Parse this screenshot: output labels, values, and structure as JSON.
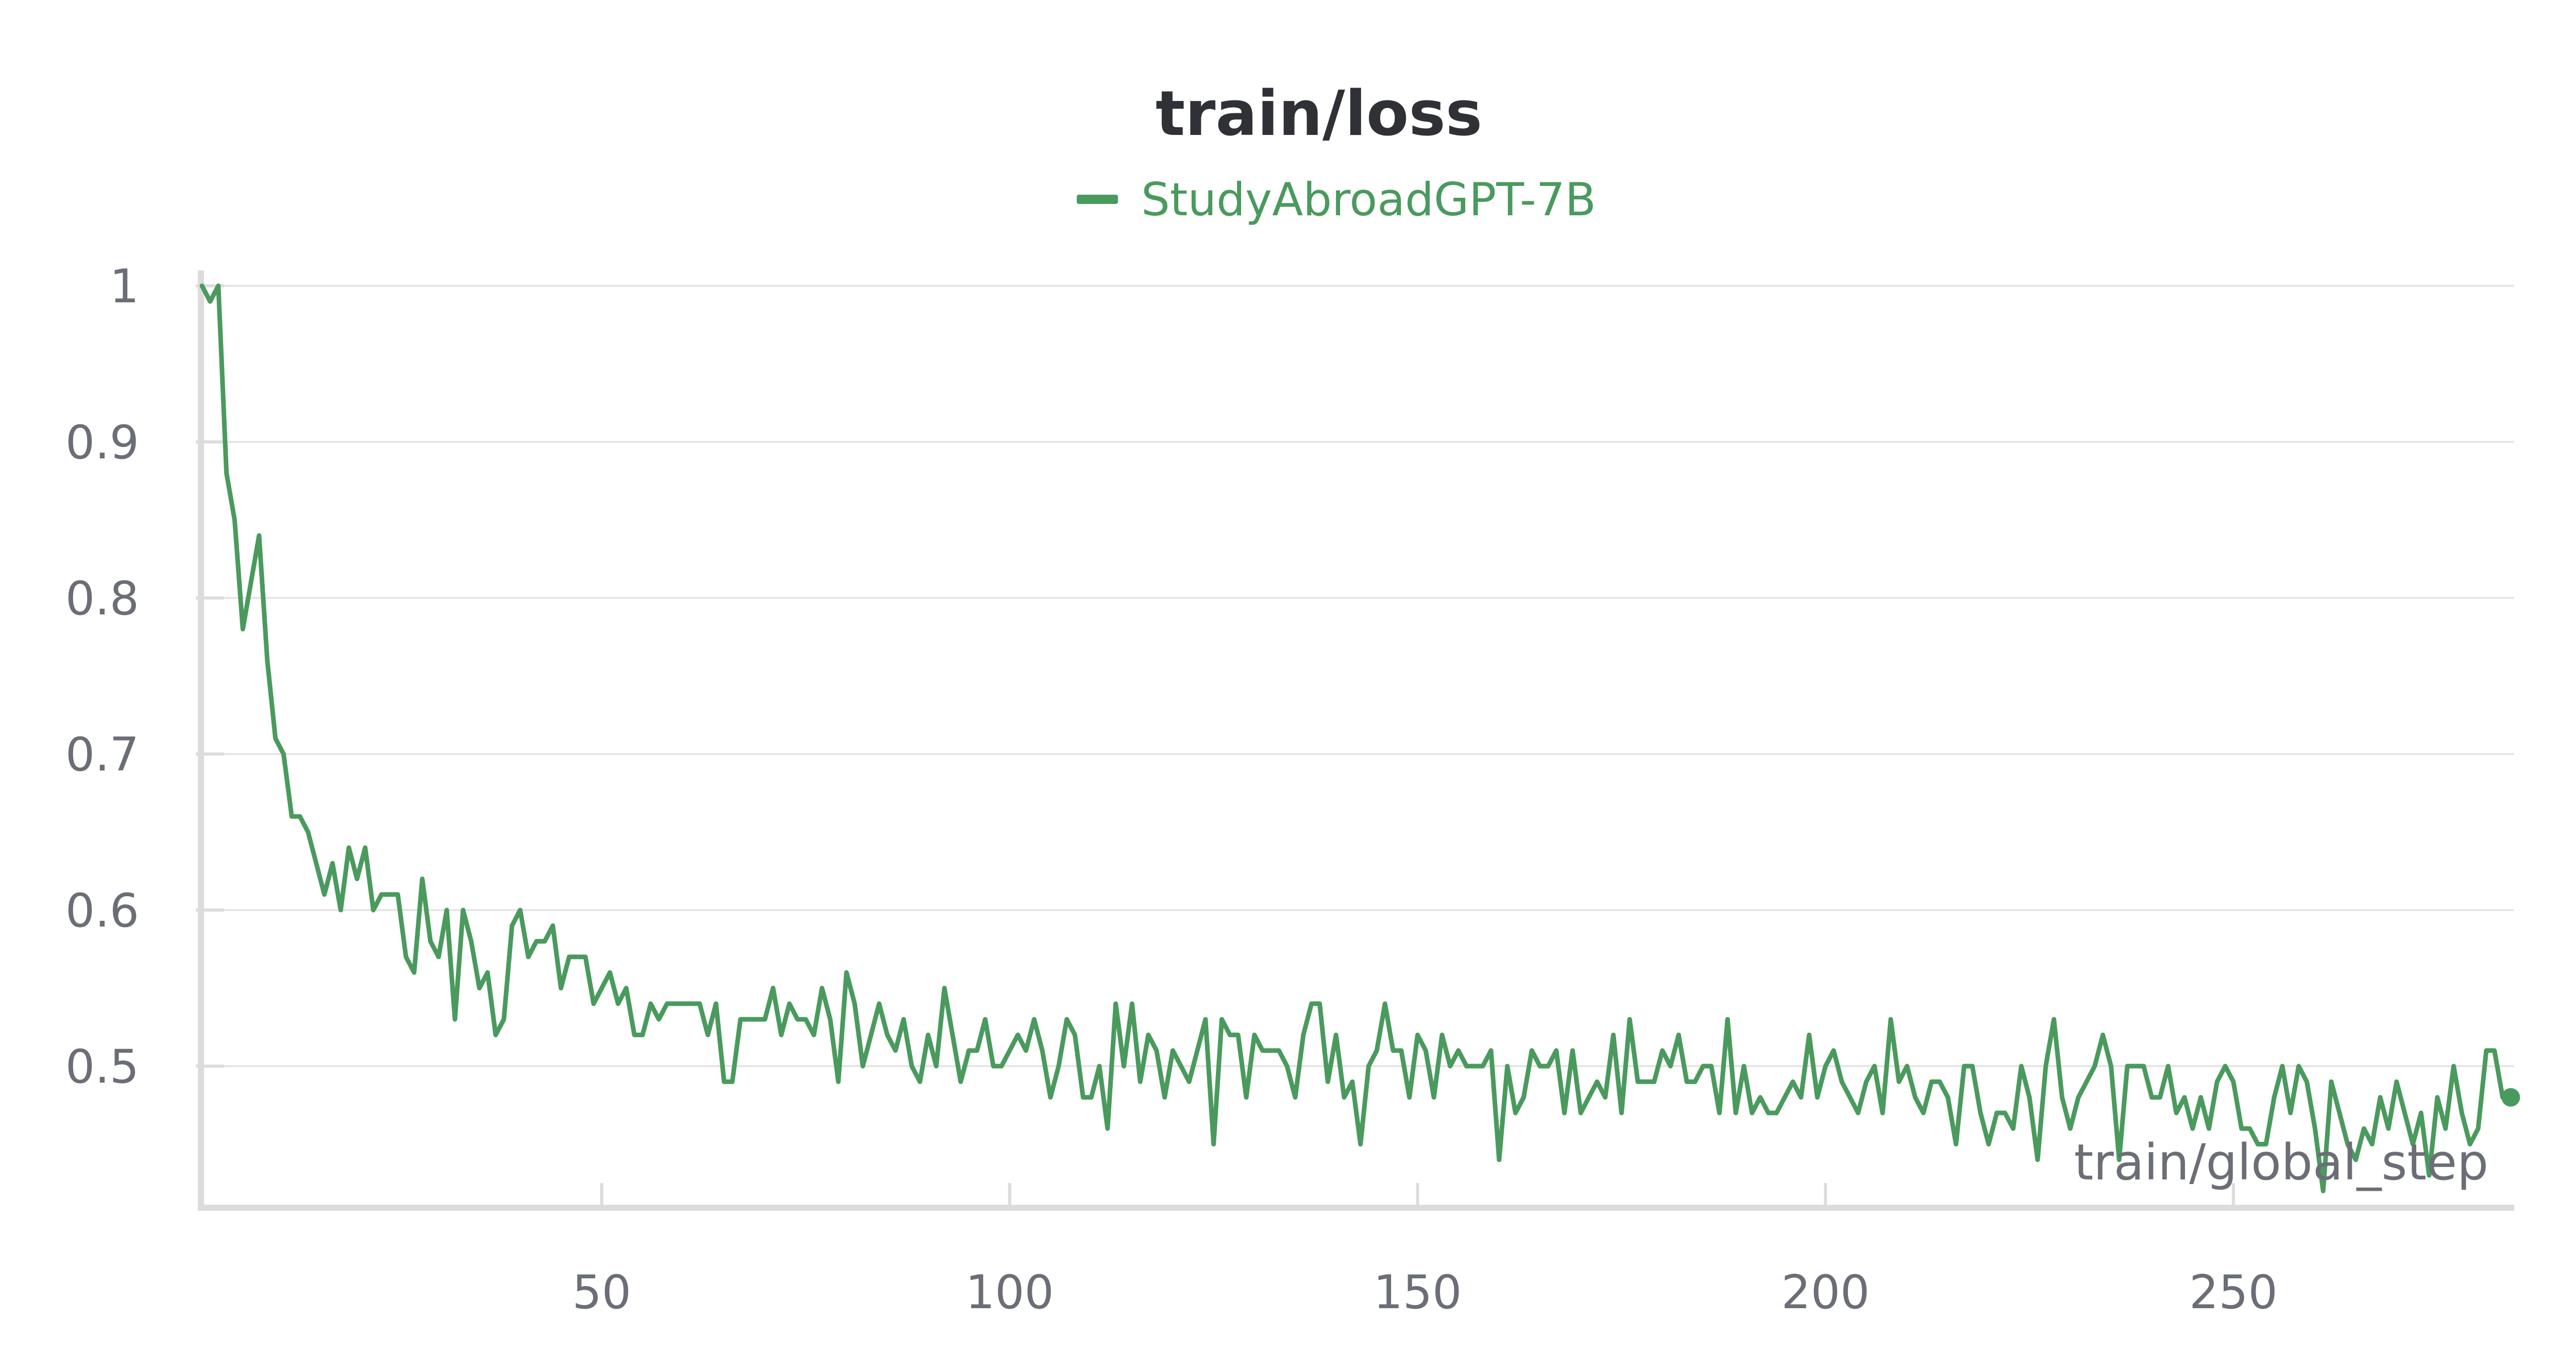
{
  "chart_data": {
    "type": "line",
    "title": "train/loss",
    "xlabel": "train/global_step",
    "ylabel": "",
    "x_ticks": [
      50,
      100,
      150,
      200,
      250
    ],
    "y_ticks": [
      0.5,
      0.6,
      0.7,
      0.8,
      0.9,
      1
    ],
    "xlim": [
      1,
      284
    ],
    "ylim": [
      0.41,
      1.0
    ],
    "grid": true,
    "legend_position": "top-center",
    "series": [
      {
        "name": "StudyAbroadGPT-7B",
        "color": "#4a9a5e",
        "x_start": 1,
        "x_step": 1,
        "values": [
          1.0,
          0.99,
          1.0,
          0.88,
          0.85,
          0.78,
          0.81,
          0.84,
          0.76,
          0.71,
          0.7,
          0.66,
          0.66,
          0.65,
          0.63,
          0.61,
          0.63,
          0.6,
          0.64,
          0.62,
          0.64,
          0.6,
          0.61,
          0.61,
          0.61,
          0.57,
          0.56,
          0.62,
          0.58,
          0.57,
          0.6,
          0.53,
          0.6,
          0.58,
          0.55,
          0.56,
          0.52,
          0.53,
          0.59,
          0.6,
          0.57,
          0.58,
          0.58,
          0.59,
          0.55,
          0.57,
          0.57,
          0.57,
          0.54,
          0.55,
          0.56,
          0.54,
          0.55,
          0.52,
          0.52,
          0.54,
          0.53,
          0.54,
          0.54,
          0.54,
          0.54,
          0.54,
          0.52,
          0.54,
          0.49,
          0.49,
          0.53,
          0.53,
          0.53,
          0.53,
          0.55,
          0.52,
          0.54,
          0.53,
          0.53,
          0.52,
          0.55,
          0.53,
          0.49,
          0.56,
          0.54,
          0.5,
          0.52,
          0.54,
          0.52,
          0.51,
          0.53,
          0.5,
          0.49,
          0.52,
          0.5,
          0.55,
          0.52,
          0.49,
          0.51,
          0.51,
          0.53,
          0.5,
          0.5,
          0.51,
          0.52,
          0.51,
          0.53,
          0.51,
          0.48,
          0.5,
          0.53,
          0.52,
          0.48,
          0.48,
          0.5,
          0.46,
          0.54,
          0.5,
          0.54,
          0.49,
          0.52,
          0.51,
          0.48,
          0.51,
          0.5,
          0.49,
          0.51,
          0.53,
          0.45,
          0.53,
          0.52,
          0.52,
          0.48,
          0.52,
          0.51,
          0.51,
          0.51,
          0.5,
          0.48,
          0.52,
          0.54,
          0.54,
          0.49,
          0.52,
          0.48,
          0.49,
          0.45,
          0.5,
          0.51,
          0.54,
          0.51,
          0.51,
          0.48,
          0.52,
          0.51,
          0.48,
          0.52,
          0.5,
          0.51,
          0.5,
          0.5,
          0.5,
          0.51,
          0.44,
          0.5,
          0.47,
          0.48,
          0.51,
          0.5,
          0.5,
          0.51,
          0.47,
          0.51,
          0.47,
          0.48,
          0.49,
          0.48,
          0.52,
          0.47,
          0.53,
          0.49,
          0.49,
          0.49,
          0.51,
          0.5,
          0.52,
          0.49,
          0.49,
          0.5,
          0.5,
          0.47,
          0.53,
          0.47,
          0.5,
          0.47,
          0.48,
          0.47,
          0.47,
          0.48,
          0.49,
          0.48,
          0.52,
          0.48,
          0.5,
          0.51,
          0.49,
          0.48,
          0.47,
          0.49,
          0.5,
          0.47,
          0.53,
          0.49,
          0.5,
          0.48,
          0.47,
          0.49,
          0.49,
          0.48,
          0.45,
          0.5,
          0.5,
          0.47,
          0.45,
          0.47,
          0.47,
          0.46,
          0.5,
          0.48,
          0.44,
          0.5,
          0.53,
          0.48,
          0.46,
          0.48,
          0.49,
          0.5,
          0.52,
          0.5,
          0.44,
          0.5,
          0.5,
          0.5,
          0.48,
          0.48,
          0.5,
          0.47,
          0.48,
          0.46,
          0.48,
          0.46,
          0.49,
          0.5,
          0.49,
          0.46,
          0.46,
          0.45,
          0.45,
          0.48,
          0.5,
          0.47,
          0.5,
          0.49,
          0.46,
          0.42,
          0.49,
          0.47,
          0.45,
          0.44,
          0.46,
          0.45,
          0.48,
          0.46,
          0.49,
          0.47,
          0.45,
          0.47,
          0.43,
          0.48,
          0.46,
          0.5,
          0.47,
          0.45,
          0.46,
          0.51,
          0.51,
          0.48,
          0.48
        ]
      }
    ]
  }
}
